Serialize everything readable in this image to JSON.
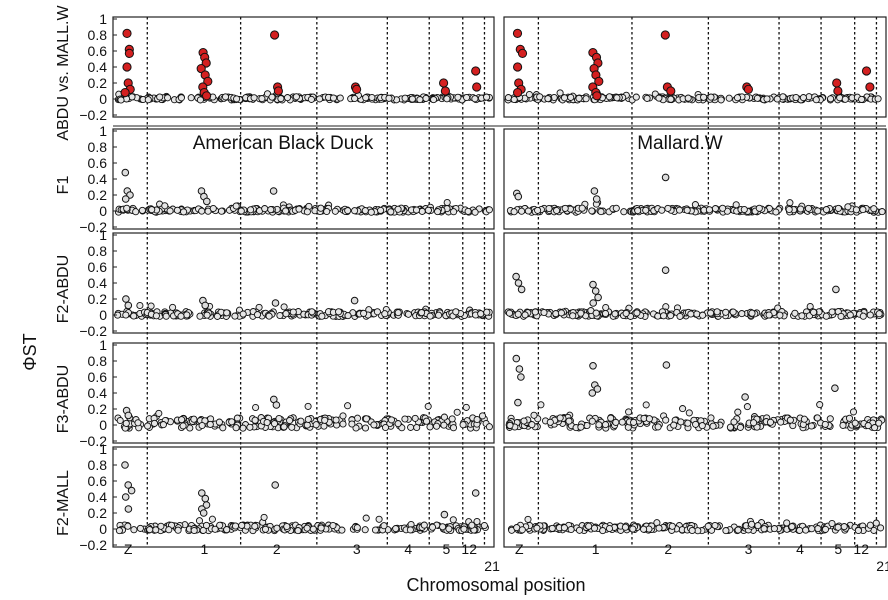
{
  "chart_data": {
    "type": "scatter",
    "title": "",
    "xlabel": "Chromosomal position",
    "ylabel": "ΦST",
    "ylim": [
      -0.2,
      1
    ],
    "yticks": [
      "−0.2",
      "0",
      "0.2",
      "0.4",
      "0.6",
      "0.8",
      "1"
    ],
    "chromosome_labels": [
      "Z",
      "1",
      "2",
      "3",
      "4",
      "5",
      "12",
      "21"
    ],
    "panel_titles": [
      "American Black Duck",
      "Mallard.W"
    ],
    "rows": [
      {
        "label": "ABDU vs. MALL.W",
        "highlight_color": "#d42020",
        "outliers": [
          {
            "panel": 0,
            "chr": "Z",
            "values": [
              0.82,
              0.62,
              0.57,
              0.4,
              0.2,
              0.12,
              0.08
            ]
          },
          {
            "panel": 0,
            "chr": "1",
            "values": [
              0.58,
              0.52,
              0.45,
              0.38,
              0.3,
              0.22,
              0.15,
              0.08,
              0.04
            ]
          },
          {
            "panel": 0,
            "chr": "2",
            "values": [
              0.8,
              0.15,
              0.1
            ]
          },
          {
            "panel": 0,
            "chr": "3",
            "values": [
              0.15,
              0.12
            ]
          },
          {
            "panel": 0,
            "chr": "5",
            "values": [
              0.2,
              0.1
            ]
          },
          {
            "panel": 0,
            "chr": "12",
            "values": [
              0.35,
              0.15
            ]
          },
          {
            "panel": 1,
            "chr": "Z",
            "values": [
              0.82,
              0.62,
              0.57,
              0.4,
              0.2,
              0.12,
              0.08
            ]
          },
          {
            "panel": 1,
            "chr": "1",
            "values": [
              0.58,
              0.52,
              0.45,
              0.38,
              0.3,
              0.22,
              0.15,
              0.08,
              0.04
            ]
          },
          {
            "panel": 1,
            "chr": "2",
            "values": [
              0.8,
              0.15,
              0.1
            ]
          },
          {
            "panel": 1,
            "chr": "3",
            "values": [
              0.15,
              0.12
            ]
          },
          {
            "panel": 1,
            "chr": "5",
            "values": [
              0.2,
              0.1
            ]
          },
          {
            "panel": 1,
            "chr": "12",
            "values": [
              0.35,
              0.15
            ]
          }
        ]
      },
      {
        "label": "F1",
        "outliers": [
          {
            "panel": 0,
            "chr": "Z",
            "values": [
              0.48,
              0.25,
              0.2,
              0.15
            ]
          },
          {
            "panel": 0,
            "chr": "1",
            "values": [
              0.25,
              0.18,
              0.12
            ]
          },
          {
            "panel": 0,
            "chr": "2",
            "values": [
              0.25
            ]
          },
          {
            "panel": 1,
            "chr": "Z",
            "values": [
              0.22,
              0.18
            ]
          },
          {
            "panel": 1,
            "chr": "1",
            "values": [
              0.25,
              0.15
            ]
          },
          {
            "panel": 1,
            "chr": "2",
            "values": [
              0.42
            ]
          }
        ]
      },
      {
        "label": "F2-ABDU",
        "outliers": [
          {
            "panel": 0,
            "chr": "Z",
            "values": [
              0.2,
              0.12
            ]
          },
          {
            "panel": 0,
            "chr": "1",
            "values": [
              0.18,
              0.12
            ]
          },
          {
            "panel": 0,
            "chr": "2",
            "values": [
              0.15
            ]
          },
          {
            "panel": 0,
            "chr": "3",
            "values": [
              0.18
            ]
          },
          {
            "panel": 1,
            "chr": "Z",
            "values": [
              0.48,
              0.4,
              0.32
            ]
          },
          {
            "panel": 1,
            "chr": "1",
            "values": [
              0.38,
              0.3,
              0.22,
              0.15
            ]
          },
          {
            "panel": 1,
            "chr": "2",
            "values": [
              0.56
            ]
          },
          {
            "panel": 1,
            "chr": "5",
            "values": [
              0.32
            ]
          }
        ]
      },
      {
        "label": "F3-ABDU",
        "outliers": [
          {
            "panel": 0,
            "chr": "Z",
            "values": [
              0.18,
              0.12
            ]
          },
          {
            "panel": 0,
            "chr": "2",
            "values": [
              0.32,
              0.25
            ]
          },
          {
            "panel": 1,
            "chr": "Z",
            "values": [
              0.83,
              0.7,
              0.6,
              0.28
            ]
          },
          {
            "panel": 1,
            "chr": "1",
            "values": [
              0.74,
              0.5,
              0.45,
              0.4
            ]
          },
          {
            "panel": 1,
            "chr": "2",
            "values": [
              0.75
            ]
          },
          {
            "panel": 1,
            "chr": "3",
            "values": [
              0.35
            ]
          },
          {
            "panel": 1,
            "chr": "5",
            "values": [
              0.46
            ]
          }
        ]
      },
      {
        "label": "F2-MALL",
        "outliers": [
          {
            "panel": 0,
            "chr": "Z",
            "values": [
              0.8,
              0.55,
              0.48,
              0.4,
              0.25
            ]
          },
          {
            "panel": 0,
            "chr": "1",
            "values": [
              0.45,
              0.38,
              0.3,
              0.25,
              0.2
            ]
          },
          {
            "panel": 0,
            "chr": "2",
            "values": [
              0.55
            ]
          },
          {
            "panel": 0,
            "chr": "5",
            "values": [
              0.18
            ]
          },
          {
            "panel": 0,
            "chr": "12",
            "values": [
              0.45
            ]
          }
        ]
      }
    ]
  }
}
